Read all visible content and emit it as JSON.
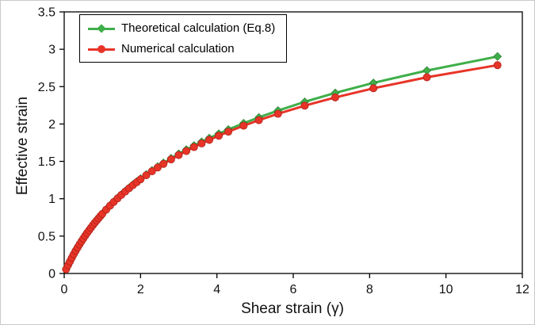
{
  "chart_data": {
    "type": "line",
    "title": "",
    "xlabel": "Shear strain (γ)",
    "ylabel": "Effective strain",
    "xlim": [
      0,
      12
    ],
    "ylim": [
      0,
      3.5
    ],
    "x_ticks": [
      0,
      2,
      4,
      6,
      8,
      10,
      12
    ],
    "y_ticks": [
      0,
      0.5,
      1,
      1.5,
      2,
      2.5,
      3,
      3.5
    ],
    "grid": false,
    "legend_position": "top-left-inside",
    "x": [
      0.05,
      0.1,
      0.15,
      0.2,
      0.25,
      0.3,
      0.35,
      0.4,
      0.45,
      0.5,
      0.55,
      0.6,
      0.65,
      0.7,
      0.75,
      0.8,
      0.85,
      0.9,
      0.95,
      1.0,
      1.1,
      1.2,
      1.3,
      1.4,
      1.5,
      1.6,
      1.7,
      1.8,
      1.9,
      2.0,
      2.15,
      2.3,
      2.45,
      2.6,
      2.8,
      3.0,
      3.2,
      3.4,
      3.6,
      3.8,
      4.05,
      4.3,
      4.7,
      5.1,
      5.6,
      6.3,
      7.1,
      8.1,
      9.5,
      11.35
    ],
    "series": [
      {
        "name": "Theoretical calculation (Eq.8)",
        "color": "#3fae49",
        "marker": "diamond",
        "values": [
          0.056,
          0.11,
          0.161,
          0.211,
          0.258,
          0.303,
          0.347,
          0.389,
          0.429,
          0.468,
          0.506,
          0.543,
          0.578,
          0.613,
          0.646,
          0.679,
          0.71,
          0.741,
          0.771,
          0.8,
          0.857,
          0.911,
          0.962,
          1.011,
          1.058,
          1.103,
          1.147,
          1.189,
          1.229,
          1.269,
          1.325,
          1.379,
          1.43,
          1.479,
          1.542,
          1.601,
          1.657,
          1.711,
          1.762,
          1.811,
          1.87,
          1.926,
          2.01,
          2.088,
          2.179,
          2.296,
          2.416,
          2.55,
          2.715,
          2.903
        ]
      },
      {
        "name": "Numerical calculation",
        "color": "#e83428",
        "marker": "circle",
        "values": [
          0.056,
          0.11,
          0.161,
          0.21,
          0.257,
          0.303,
          0.346,
          0.388,
          0.428,
          0.467,
          0.505,
          0.542,
          0.577,
          0.611,
          0.645,
          0.677,
          0.708,
          0.739,
          0.769,
          0.798,
          0.854,
          0.907,
          0.957,
          1.006,
          1.052,
          1.097,
          1.14,
          1.181,
          1.221,
          1.26,
          1.315,
          1.368,
          1.418,
          1.466,
          1.526,
          1.584,
          1.638,
          1.691,
          1.74,
          1.787,
          1.843,
          1.897,
          1.977,
          2.051,
          2.136,
          2.245,
          2.356,
          2.478,
          2.625,
          2.787
        ]
      }
    ]
  }
}
